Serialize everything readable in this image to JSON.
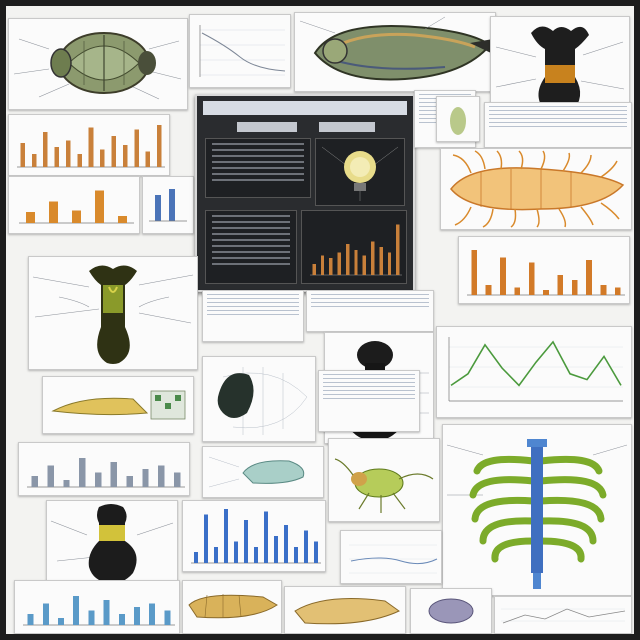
{
  "board": {
    "background": "#f3f3f1",
    "frame": "#1d1d1d"
  },
  "dashboard": {
    "title": "",
    "panel_colors": {
      "bg": "#2a2c2f",
      "bar": "#c9803a",
      "blob": "#e6d77a"
    },
    "bar_values": [
      0.2,
      0.35,
      0.3,
      0.4,
      0.55,
      0.45,
      0.35,
      0.6,
      0.5,
      0.4,
      0.9
    ]
  },
  "minicharts": {
    "top_left_bars": [
      0.55,
      0.3,
      0.8,
      0.45,
      0.6,
      0.3,
      0.9,
      0.4,
      0.7,
      0.5,
      0.85,
      0.35,
      0.95
    ],
    "right_bars": [
      0.9,
      0.2,
      0.75,
      0.15,
      0.65,
      0.1,
      0.4,
      0.3,
      0.7,
      0.2,
      0.15
    ],
    "left_small_bars": [
      0.3,
      0.6,
      0.35,
      0.9,
      0.2
    ],
    "wave": [
      0.2,
      0.4,
      0.9,
      0.5,
      0.2,
      0.6,
      0.95,
      0.4,
      0.3,
      0.7,
      0.2
    ],
    "blue_spikes": [
      0.2,
      0.9,
      0.3,
      1.0,
      0.4,
      0.8,
      0.3,
      0.95,
      0.5,
      0.7,
      0.3,
      0.6,
      0.4
    ],
    "bottom_bars": [
      0.3,
      0.6,
      0.2,
      0.8,
      0.4,
      0.7,
      0.3,
      0.5,
      0.6,
      0.4
    ]
  },
  "icons": {
    "beetle": "beetle-specimen",
    "trilobite": "trilobite-specimen",
    "bone": "bone-specimen",
    "shrimp": "crustacean-specimen",
    "bulb": "dark-bulb-specimen",
    "ribcage": "ribcage-specimen"
  }
}
